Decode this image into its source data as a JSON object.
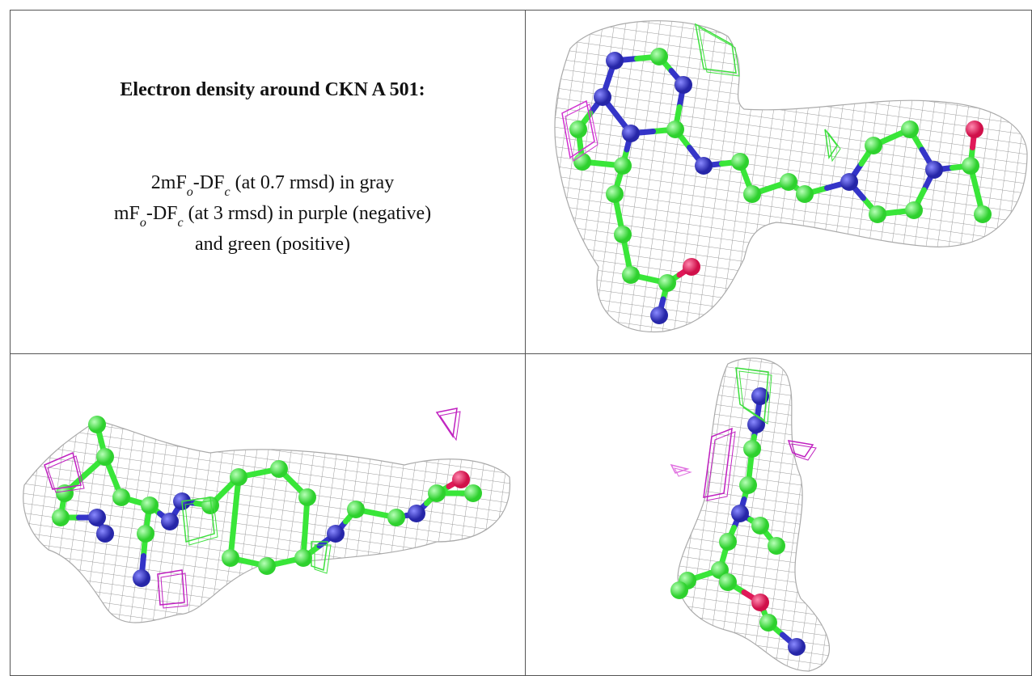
{
  "caption": {
    "title": "Electron density around CKN A 501:",
    "lines": [
      [
        "2mF",
        "o",
        "-DF",
        "c",
        " (at 0.7 rmsd) in gray"
      ],
      [
        "mF",
        "o",
        "-DF",
        "c",
        " (at 3 rmsd) in purple (negative)"
      ],
      [
        "and green (positive)"
      ]
    ]
  }
}
